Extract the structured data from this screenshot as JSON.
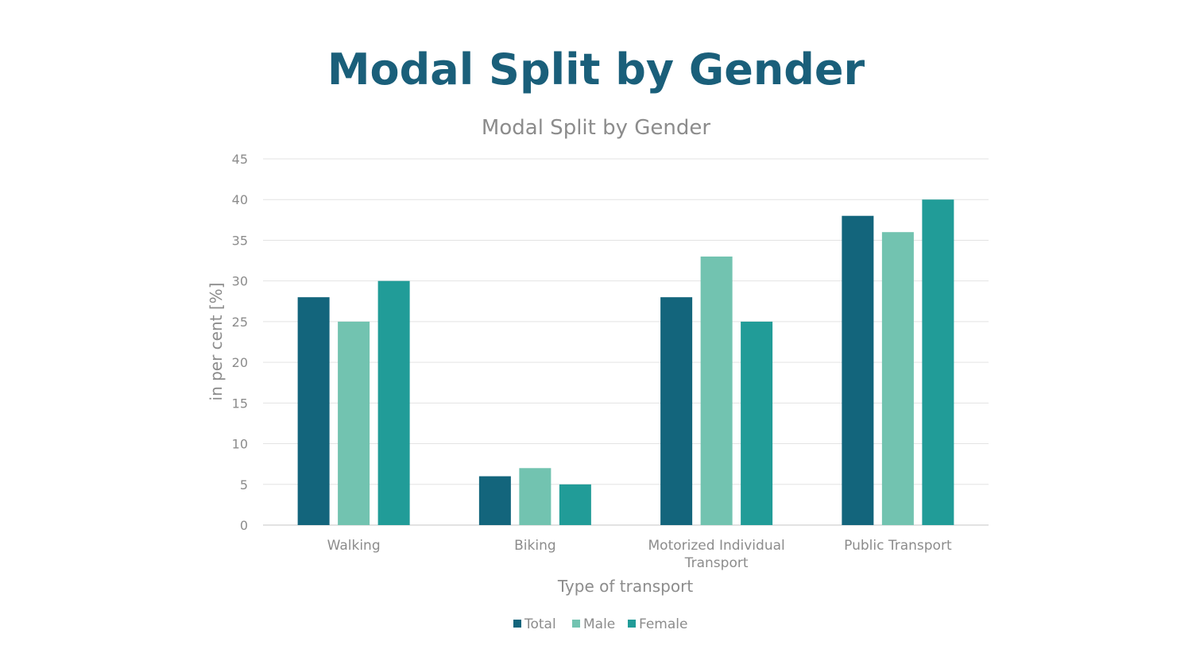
{
  "page": {
    "title": "Modal Split by Gender"
  },
  "chart_data": {
    "type": "bar",
    "title": "Modal Split by Gender",
    "xlabel": "Type of transport",
    "ylabel": "in per cent [%]",
    "ylim": [
      0,
      45
    ],
    "yticks": [
      "0",
      "5",
      "10",
      "15",
      "20",
      "25",
      "30",
      "35",
      "40",
      "45"
    ],
    "categories": [
      [
        "Walking"
      ],
      [
        "Biking"
      ],
      [
        "Motorized Individual",
        "Transport"
      ],
      [
        "Public Transport"
      ]
    ],
    "series": [
      {
        "name": "Total",
        "color": "#13657c",
        "values": [
          28,
          6,
          28,
          38
        ]
      },
      {
        "name": "Male",
        "color": "#72c3b0",
        "values": [
          25,
          7,
          33,
          36
        ]
      },
      {
        "name": "Female",
        "color": "#219c98",
        "values": [
          30,
          5,
          25,
          40
        ]
      }
    ],
    "grid": true,
    "legend": "bottom-center"
  }
}
